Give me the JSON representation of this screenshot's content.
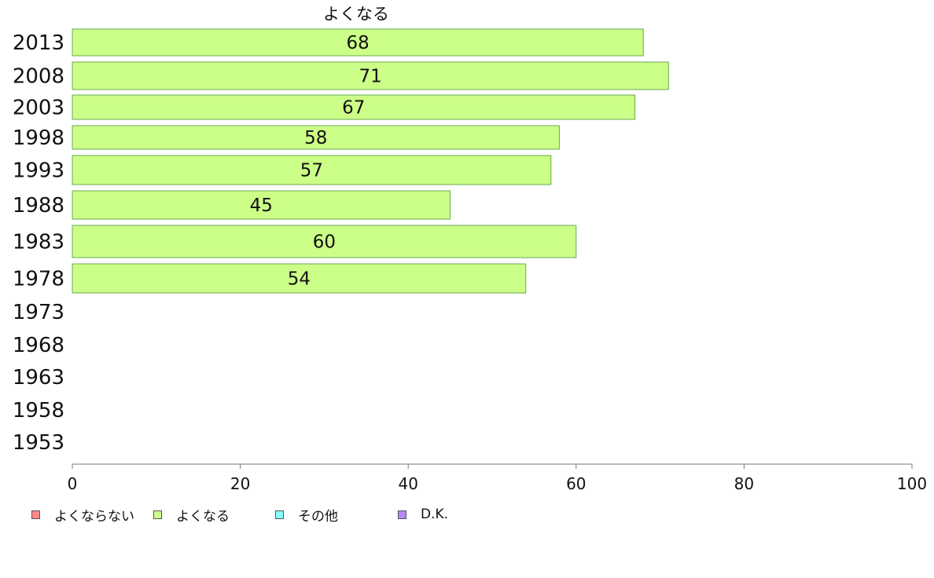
{
  "chart_data": {
    "type": "bar",
    "orientation": "horizontal",
    "title": "よくなる",
    "categories": [
      "2013",
      "2008",
      "2003",
      "1998",
      "1993",
      "1988",
      "1983",
      "1978",
      "1973",
      "1968",
      "1963",
      "1958",
      "1953"
    ],
    "series": [
      {
        "name": "よくなる",
        "color": "#ccff88",
        "values": [
          68,
          71,
          67,
          58,
          57,
          45,
          60,
          54,
          null,
          null,
          null,
          null,
          null
        ]
      }
    ],
    "xlim": [
      0,
      100
    ],
    "xticks": [
      "0",
      "20",
      "40",
      "60",
      "80",
      "100"
    ],
    "grid": false,
    "legend_position": "bottom-left",
    "legend": [
      {
        "name": "よくならない",
        "color": "#ff8888"
      },
      {
        "name": "よくなる",
        "color": "#ccff88"
      },
      {
        "name": "その他",
        "color": "#88ffff"
      },
      {
        "name": "D.K.",
        "color": "#bb88ff"
      }
    ]
  }
}
